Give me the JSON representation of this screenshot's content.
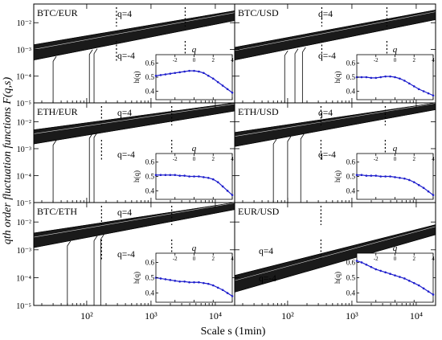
{
  "figure": {
    "ylabel": "qth order fluctuation functions F(q,s)",
    "xlabel": "Scale s (1min)"
  },
  "chart_data": [
    {
      "type": "line",
      "pair": "BTC/EUR",
      "q_high_label": "q=4",
      "q_low_label": "q=-4",
      "crossover_scales": [
        290,
        3400
      ],
      "x_scale": "log",
      "y_scale": "log",
      "xlim": [
        15,
        20000
      ],
      "ylim": [
        1e-05,
        0.05
      ],
      "series": [
        {
          "name": "q=4",
          "x": [
            15,
            20000
          ],
          "y": [
            0.0015,
            0.028
          ]
        },
        {
          "name": "q=-4",
          "x": [
            15,
            20000
          ],
          "y": [
            0.0004,
            0.012
          ]
        }
      ],
      "drop_scales": [
        30,
        110,
        130
      ],
      "inset": {
        "xlabel": "q",
        "ylabel": "h(q)",
        "xlim": [
          -4,
          4
        ],
        "ylim": [
          0.34,
          0.66
        ],
        "yticks": [
          0.4,
          0.5,
          0.6
        ],
        "xticks": [
          -2,
          0,
          2,
          4
        ],
        "q": [
          -4,
          -3.5,
          -3,
          -2.5,
          -2,
          -1.5,
          -1,
          -0.5,
          0,
          0.5,
          1,
          1.5,
          2,
          2.5,
          3,
          3.5,
          4
        ],
        "h": [
          0.51,
          0.515,
          0.52,
          0.525,
          0.53,
          0.535,
          0.54,
          0.545,
          0.545,
          0.54,
          0.53,
          0.51,
          0.49,
          0.465,
          0.44,
          0.415,
          0.39
        ]
      }
    },
    {
      "type": "line",
      "pair": "BTC/USD",
      "q_high_label": "q=4",
      "q_low_label": "q=-4",
      "crossover_scales": [
        340,
        3500
      ],
      "x_scale": "log",
      "y_scale": "log",
      "xlim": [
        15,
        20000
      ],
      "ylim": [
        1e-05,
        0.05
      ],
      "series": [
        {
          "name": "q=4",
          "x": [
            15,
            20000
          ],
          "y": [
            0.0012,
            0.03
          ]
        },
        {
          "name": "q=-4",
          "x": [
            15,
            20000
          ],
          "y": [
            0.0004,
            0.013
          ]
        }
      ],
      "drop_scales": [
        90,
        130,
        170
      ],
      "inset": {
        "xlabel": "q",
        "ylabel": "h(q)",
        "xlim": [
          -4,
          4
        ],
        "ylim": [
          0.34,
          0.66
        ],
        "yticks": [
          0.4,
          0.5,
          0.6
        ],
        "xticks": [
          -2,
          0,
          2,
          4
        ],
        "q": [
          -4,
          -3.5,
          -3,
          -2.5,
          -2,
          -1.5,
          -1,
          -0.5,
          0,
          0.5,
          1,
          1.5,
          2,
          2.5,
          3,
          3.5,
          4
        ],
        "h": [
          0.5,
          0.5,
          0.5,
          0.495,
          0.495,
          0.5,
          0.505,
          0.505,
          0.5,
          0.49,
          0.475,
          0.455,
          0.435,
          0.415,
          0.4,
          0.385,
          0.37
        ]
      }
    },
    {
      "type": "line",
      "pair": "ETH/EUR",
      "q_high_label": "q=4",
      "q_low_label": "q=-4",
      "crossover_scales": [
        170,
        2100
      ],
      "x_scale": "log",
      "y_scale": "log",
      "xlim": [
        15,
        20000
      ],
      "ylim": [
        1e-05,
        0.05
      ],
      "series": [
        {
          "name": "q=4",
          "x": [
            15,
            20000
          ],
          "y": [
            0.005,
            0.05
          ]
        },
        {
          "name": "q=-4",
          "x": [
            15,
            20000
          ],
          "y": [
            0.0015,
            0.025
          ]
        }
      ],
      "drop_scales": [
        30,
        110,
        130
      ],
      "inset": {
        "xlabel": "q",
        "ylabel": "h(q)",
        "xlim": [
          -4,
          4
        ],
        "ylim": [
          0.34,
          0.66
        ],
        "yticks": [
          0.4,
          0.5,
          0.6
        ],
        "xticks": [
          -2,
          0,
          2,
          4
        ],
        "q": [
          -4,
          -3.5,
          -3,
          -2.5,
          -2,
          -1.5,
          -1,
          -0.5,
          0,
          0.5,
          1,
          1.5,
          2,
          2.5,
          3,
          3.5,
          4
        ],
        "h": [
          0.51,
          0.51,
          0.51,
          0.51,
          0.51,
          0.505,
          0.505,
          0.5,
          0.5,
          0.5,
          0.495,
          0.49,
          0.48,
          0.46,
          0.43,
          0.4,
          0.37
        ]
      }
    },
    {
      "type": "line",
      "pair": "ETH/USD",
      "q_high_label": "q=4",
      "q_low_label": "q=-4",
      "crossover_scales": [
        330,
        3300
      ],
      "x_scale": "log",
      "y_scale": "log",
      "xlim": [
        15,
        20000
      ],
      "ylim": [
        1e-05,
        0.05
      ],
      "series": [
        {
          "name": "q=4",
          "x": [
            15,
            20000
          ],
          "y": [
            0.004,
            0.05
          ]
        },
        {
          "name": "q=-4",
          "x": [
            15,
            20000
          ],
          "y": [
            0.0012,
            0.028
          ]
        }
      ],
      "drop_scales": [
        60,
        100,
        160
      ],
      "inset": {
        "xlabel": "q",
        "ylabel": "h(q)",
        "xlim": [
          -4,
          4
        ],
        "ylim": [
          0.34,
          0.66
        ],
        "yticks": [
          0.4,
          0.5,
          0.6
        ],
        "xticks": [
          -2,
          0,
          2,
          4
        ],
        "q": [
          -4,
          -3.5,
          -3,
          -2.5,
          -2,
          -1.5,
          -1,
          -0.5,
          0,
          0.5,
          1,
          1.5,
          2,
          2.5,
          3,
          3.5,
          4
        ],
        "h": [
          0.51,
          0.51,
          0.505,
          0.505,
          0.505,
          0.5,
          0.5,
          0.5,
          0.495,
          0.49,
          0.485,
          0.475,
          0.46,
          0.44,
          0.42,
          0.395,
          0.37
        ]
      }
    },
    {
      "type": "line",
      "pair": "BTC/ETH",
      "q_high_label": "q=4",
      "q_low_label": "q=-4",
      "crossover_scales": [
        170,
        2100
      ],
      "x_scale": "log",
      "y_scale": "log",
      "xlim": [
        15,
        20000
      ],
      "ylim": [
        1e-05,
        0.05
      ],
      "series": [
        {
          "name": "q=4",
          "x": [
            15,
            20000
          ],
          "y": [
            0.004,
            0.05
          ]
        },
        {
          "name": "q=-4",
          "x": [
            15,
            20000
          ],
          "y": [
            0.0012,
            0.028
          ]
        }
      ],
      "drop_scales": [
        50,
        130,
        165
      ],
      "inset": {
        "xlabel": "q",
        "ylabel": "h(q)",
        "xlim": [
          -4,
          4
        ],
        "ylim": [
          0.34,
          0.66
        ],
        "yticks": [
          0.4,
          0.5,
          0.6
        ],
        "xticks": [
          -2,
          0,
          2,
          4
        ],
        "q": [
          -4,
          -3.5,
          -3,
          -2.5,
          -2,
          -1.5,
          -1,
          -0.5,
          0,
          0.5,
          1,
          1.5,
          2,
          2.5,
          3,
          3.5,
          4
        ],
        "h": [
          0.5,
          0.495,
          0.49,
          0.485,
          0.48,
          0.475,
          0.475,
          0.47,
          0.47,
          0.47,
          0.465,
          0.46,
          0.45,
          0.435,
          0.42,
          0.4,
          0.38
        ]
      }
    },
    {
      "type": "line",
      "pair": "EUR/USD",
      "q_high_label": "q=4",
      "q_low_label": "q=-4",
      "crossover_scales": [
        330
      ],
      "x_scale": "log",
      "y_scale": "log",
      "xlim": [
        15,
        20000
      ],
      "ylim": [
        1e-05,
        0.05
      ],
      "series": [
        {
          "name": "q=4",
          "x": [
            15,
            20000
          ],
          "y": [
            0.00012,
            0.008
          ]
        },
        {
          "name": "q=-4",
          "x": [
            15,
            20000
          ],
          "y": [
            3e-05,
            0.0035
          ]
        }
      ],
      "drop_scales": [],
      "inset": {
        "xlabel": "q",
        "ylabel": "h(q)",
        "xlim": [
          -4,
          4
        ],
        "ylim": [
          0.34,
          0.66
        ],
        "yticks": [
          0.4,
          0.5,
          0.6
        ],
        "xticks": [
          -2,
          0,
          2,
          4
        ],
        "q": [
          -4,
          -3.5,
          -3,
          -2.5,
          -2,
          -1.5,
          -1,
          -0.5,
          0,
          0.5,
          1,
          1.5,
          2,
          2.5,
          3,
          3.5,
          4
        ],
        "h": [
          0.61,
          0.6,
          0.585,
          0.57,
          0.555,
          0.545,
          0.535,
          0.525,
          0.515,
          0.505,
          0.495,
          0.48,
          0.465,
          0.45,
          0.43,
          0.41,
          0.39
        ]
      }
    }
  ],
  "axes": {
    "yticks": [
      "10⁻⁵",
      "10⁻⁴",
      "10⁻³",
      "10⁻²"
    ],
    "xticks": [
      "10²",
      "10³",
      "10⁴"
    ]
  }
}
